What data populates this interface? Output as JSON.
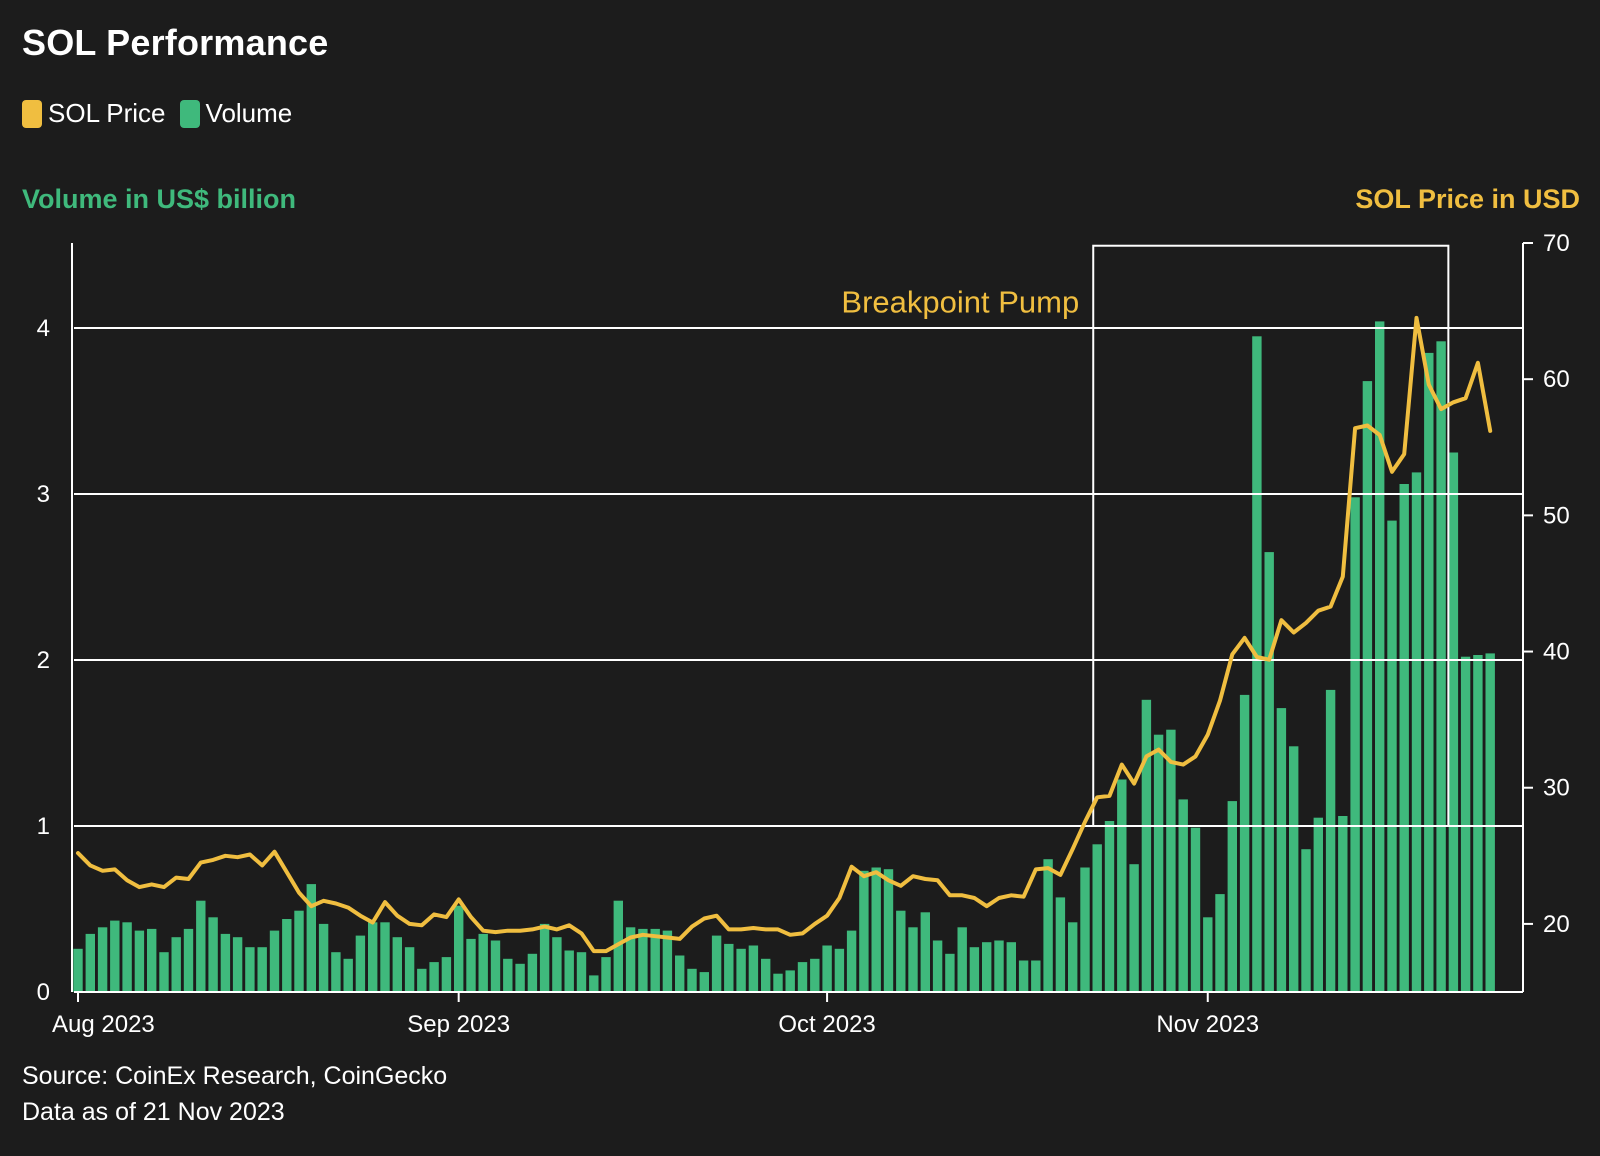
{
  "colors": {
    "background": "#1c1c1c",
    "price": "#f0be40",
    "volume": "#3fb97c",
    "grid": "#ffffff",
    "text": "#ffffff"
  },
  "chart_data": {
    "type": "bar+line",
    "title": "SOL Performance",
    "legend": [
      "SOL Price",
      "Volume"
    ],
    "legend_position": "top-left",
    "left_axis_label": "Volume in US$ billion",
    "right_axis_label": "SOL Price in USD",
    "left_ylim": [
      0,
      4.5
    ],
    "left_ticks": [
      0,
      1,
      2,
      3,
      4
    ],
    "right_ylim": [
      15,
      70
    ],
    "right_ticks": [
      20,
      30,
      40,
      50,
      60,
      70
    ],
    "x_ticks": [
      "Aug 2023",
      "Sep 2023",
      "Oct 2023",
      "Nov 2023"
    ],
    "x_tick_day_index": [
      0,
      31,
      61,
      92
    ],
    "grid": "horizontal",
    "annotation": {
      "label": "Breakpoint Pump",
      "start_day": 83,
      "end_day": 112,
      "top_price": 69.8,
      "bottom_volume": 1.0
    },
    "series": [
      {
        "name": "Volume",
        "axis": "left",
        "kind": "bar",
        "values": [
          0.26,
          0.35,
          0.39,
          0.43,
          0.42,
          0.37,
          0.38,
          0.24,
          0.33,
          0.38,
          0.55,
          0.45,
          0.35,
          0.33,
          0.27,
          0.27,
          0.37,
          0.44,
          0.49,
          0.65,
          0.41,
          0.24,
          0.2,
          0.34,
          0.42,
          0.42,
          0.33,
          0.27,
          0.14,
          0.18,
          0.21,
          0.52,
          0.32,
          0.35,
          0.31,
          0.2,
          0.17,
          0.23,
          0.41,
          0.33,
          0.25,
          0.24,
          0.1,
          0.21,
          0.55,
          0.39,
          0.38,
          0.38,
          0.37,
          0.22,
          0.14,
          0.12,
          0.34,
          0.29,
          0.26,
          0.28,
          0.2,
          0.11,
          0.13,
          0.18,
          0.2,
          0.28,
          0.26,
          0.37,
          0.73,
          0.75,
          0.74,
          0.49,
          0.39,
          0.48,
          0.31,
          0.23,
          0.39,
          0.27,
          0.3,
          0.31,
          0.3,
          0.19,
          0.19,
          0.8,
          0.57,
          0.42,
          0.75,
          0.89,
          1.03,
          1.28,
          0.77,
          1.76,
          1.55,
          1.58,
          1.16,
          0.99,
          0.45,
          0.59,
          1.15,
          1.79,
          3.95,
          2.65,
          1.71,
          1.48,
          0.86,
          1.05,
          1.82,
          1.06,
          2.98,
          3.68,
          4.04,
          2.84,
          3.06,
          3.13,
          3.85,
          3.92,
          3.25,
          2.02,
          2.03,
          2.04
        ]
      },
      {
        "name": "SOL Price",
        "axis": "right",
        "kind": "line",
        "values": [
          25.2,
          24.3,
          23.9,
          24.0,
          23.2,
          22.7,
          22.9,
          22.7,
          23.4,
          23.3,
          24.5,
          24.7,
          25.0,
          24.9,
          25.1,
          24.3,
          25.3,
          23.8,
          22.3,
          21.3,
          21.7,
          21.5,
          21.2,
          20.6,
          20.1,
          21.6,
          20.6,
          20.0,
          19.9,
          20.7,
          20.5,
          21.8,
          20.5,
          19.5,
          19.4,
          19.5,
          19.5,
          19.6,
          19.8,
          19.6,
          19.9,
          19.3,
          18.0,
          18.0,
          18.5,
          19.0,
          19.2,
          19.1,
          19.0,
          18.9,
          19.8,
          20.4,
          20.6,
          19.6,
          19.6,
          19.7,
          19.6,
          19.6,
          19.2,
          19.3,
          20.0,
          20.6,
          21.9,
          24.2,
          23.5,
          23.8,
          23.2,
          22.8,
          23.5,
          23.3,
          23.2,
          22.1,
          22.1,
          21.9,
          21.3,
          21.9,
          22.1,
          22.0,
          24.0,
          24.1,
          23.6,
          25.5,
          27.5,
          29.3,
          29.4,
          31.7,
          30.3,
          32.3,
          32.8,
          31.9,
          31.7,
          32.3,
          33.9,
          36.4,
          39.8,
          41.0,
          39.6,
          39.4,
          42.3,
          41.4,
          42.1,
          43.0,
          43.3,
          45.5,
          56.4,
          56.6,
          55.9,
          53.2,
          54.5,
          64.5,
          59.6,
          57.8,
          58.3,
          58.6,
          61.2,
          56.2
        ]
      }
    ]
  },
  "footer": {
    "source": "Source: CoinEx Research, CoinGecko",
    "as_of": "Data as of 21 Nov 2023"
  }
}
